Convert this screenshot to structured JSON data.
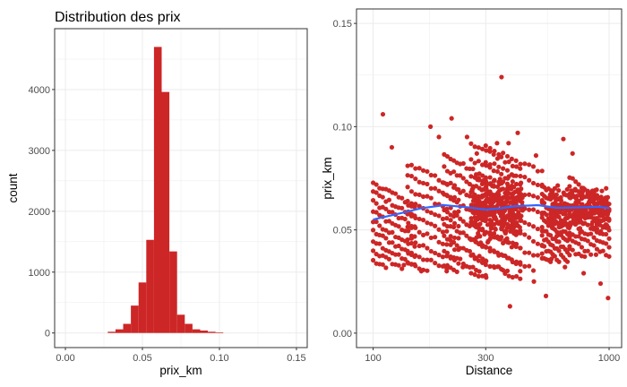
{
  "colors": {
    "bar_fill": "#cd2626",
    "point_fill": "#cd2626",
    "smooth_line": "#3366ff",
    "panel_border": "#333333",
    "grid": "#ebebeb",
    "background": "#ffffff"
  },
  "chart_data": [
    {
      "type": "bar",
      "chart_kind": "histogram",
      "title": "Distribution des prix",
      "xlabel": "prix_km",
      "ylabel": "count",
      "xlim": [
        -0.007,
        0.157
      ],
      "ylim": [
        -240,
        5000
      ],
      "grid": true,
      "x_ticks": [
        0.0,
        0.05,
        0.1,
        0.15
      ],
      "x_tick_labels": [
        "0.00",
        "0.05",
        "0.10",
        "0.15"
      ],
      "y_ticks": [
        0,
        1000,
        2000,
        3000,
        4000
      ],
      "y_tick_labels": [
        "0",
        "1000",
        "2000",
        "3000",
        "4000"
      ],
      "bin_width": 0.005,
      "bin_centers": [
        0.03,
        0.035,
        0.04,
        0.045,
        0.05,
        0.055,
        0.06,
        0.065,
        0.07,
        0.075,
        0.08,
        0.085,
        0.09,
        0.095,
        0.1
      ],
      "values": [
        20,
        60,
        150,
        450,
        830,
        1530,
        4700,
        3960,
        1340,
        300,
        150,
        60,
        40,
        20,
        10
      ]
    },
    {
      "type": "scatter",
      "title": "",
      "xlabel": "Distance",
      "ylabel": "prix_km",
      "x_scale": "log10",
      "xlim": [
        85,
        1130
      ],
      "ylim": [
        -0.007,
        0.157
      ],
      "grid": true,
      "x_ticks": [
        100,
        300,
        1000
      ],
      "x_tick_labels": [
        "100",
        "300",
        "1000"
      ],
      "y_ticks": [
        0.0,
        0.05,
        0.1,
        0.15
      ],
      "y_tick_labels": [
        "0.00",
        "0.05",
        "0.10",
        "0.15"
      ],
      "points": [
        [
          110,
          0.106
        ],
        [
          120,
          0.09
        ],
        [
          175,
          0.1
        ],
        [
          190,
          0.095
        ],
        [
          215,
          0.104
        ],
        [
          250,
          0.095
        ],
        [
          275,
          0.087
        ],
        [
          335,
          0.092
        ],
        [
          350,
          0.124
        ],
        [
          375,
          0.092
        ],
        [
          410,
          0.097
        ],
        [
          490,
          0.086
        ],
        [
          640,
          0.094
        ],
        [
          700,
          0.087
        ],
        [
          380,
          0.013
        ],
        [
          480,
          0.025
        ],
        [
          540,
          0.018
        ],
        [
          990,
          0.017
        ],
        [
          300,
          0.028
        ],
        [
          420,
          0.03
        ],
        [
          570,
          0.036
        ],
        [
          240,
          0.032
        ],
        [
          270,
          0.036
        ],
        [
          650,
          0.032
        ],
        [
          780,
          0.029
        ],
        [
          880,
          0.038
        ],
        [
          920,
          0.024
        ],
        [
          135,
          0.033
        ],
        [
          160,
          0.03
        ],
        [
          205,
          0.03
        ],
        [
          600,
          0.047
        ],
        [
          1000,
          0.06
        ]
      ],
      "bands": [
        {
          "x": [
            100,
            150
          ],
          "y": [
            0.035,
            0.073
          ]
        },
        {
          "x": [
            140,
            230
          ],
          "y": [
            0.034,
            0.082
          ]
        },
        {
          "x": [
            200,
            300
          ],
          "y": [
            0.033,
            0.087
          ]
        },
        {
          "x": [
            260,
            420
          ],
          "y": [
            0.03,
            0.092
          ]
        },
        {
          "x": [
            300,
            520
          ],
          "y": [
            0.034,
            0.09
          ]
        },
        {
          "x": [
            520,
            680
          ],
          "y": [
            0.038,
            0.072
          ]
        },
        {
          "x": [
            680,
            1000
          ],
          "y": [
            0.041,
            0.075
          ]
        }
      ],
      "density_layers": [
        {
          "x": [
            260,
            430
          ],
          "y": [
            0.045,
            0.075
          ]
        },
        {
          "x": [
            560,
            1000
          ],
          "y": [
            0.05,
            0.07
          ]
        }
      ],
      "smooth_line": {
        "x": [
          100,
          130,
          160,
          200,
          250,
          300,
          350,
          400,
          500,
          600,
          700,
          800,
          900,
          1000
        ],
        "y": [
          0.055,
          0.058,
          0.0605,
          0.062,
          0.061,
          0.0598,
          0.0605,
          0.0615,
          0.062,
          0.0607,
          0.0608,
          0.061,
          0.0612,
          0.0605
        ]
      }
    }
  ]
}
